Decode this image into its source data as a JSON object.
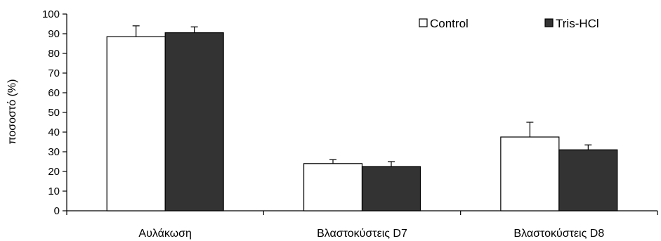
{
  "chart_data": {
    "type": "bar",
    "title": "",
    "xlabel": "",
    "ylabel": "ποσοστό (%)",
    "categories": [
      "Αυλάκωση",
      "Βλαστοκύστεις D7",
      "Βλαστοκύστεις D8"
    ],
    "series": [
      {
        "name": "Control",
        "values": [
          88.5,
          24,
          37.5
        ],
        "errors": [
          5.5,
          2,
          7.5
        ],
        "color": "#ffffff"
      },
      {
        "name": "Tris-HCl",
        "values": [
          90.5,
          22.5,
          31
        ],
        "errors": [
          3,
          2.5,
          2.5
        ],
        "color": "#333333"
      }
    ],
    "ylim": [
      0,
      100
    ],
    "yticks": [
      0,
      10,
      20,
      30,
      40,
      50,
      60,
      70,
      80,
      90,
      100
    ],
    "grid": false,
    "legend_position": "top-right"
  }
}
